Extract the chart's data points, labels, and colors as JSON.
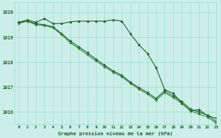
{
  "title": "Graphe pression niveau de la mer (hPa)",
  "bg_color": "#cceee8",
  "grid_color": "#99ddcc",
  "line_color1": "#1a5c28",
  "line_color2": "#1a5c28",
  "line_color3": "#2e7d3a",
  "xlim": [
    -0.5,
    23
  ],
  "ylim": [
    1015.5,
    1020.4
  ],
  "yticks": [
    1016,
    1017,
    1018,
    1019,
    1020
  ],
  "xticks": [
    0,
    1,
    2,
    3,
    4,
    5,
    6,
    7,
    8,
    9,
    10,
    11,
    12,
    13,
    14,
    15,
    16,
    17,
    18,
    19,
    20,
    21,
    22,
    23
  ],
  "series1": [
    1019.6,
    1019.7,
    1019.6,
    1019.75,
    1019.55,
    1019.55,
    1019.62,
    1019.65,
    1019.65,
    1019.65,
    1019.65,
    1019.7,
    1019.65,
    1019.15,
    1018.7,
    1018.35,
    1017.78,
    1016.9,
    1016.75,
    1016.35,
    1016.05,
    1016.1,
    1015.85,
    1015.75
  ],
  "series2": [
    1019.6,
    1019.65,
    1019.55,
    1019.5,
    1019.42,
    1019.15,
    1018.85,
    1018.62,
    1018.38,
    1018.12,
    1017.88,
    1017.65,
    1017.48,
    1017.2,
    1016.98,
    1016.78,
    1016.55,
    1016.85,
    1016.65,
    1016.42,
    1016.12,
    1016.0,
    1015.88,
    1015.62
  ],
  "series3": [
    1019.55,
    1019.65,
    1019.5,
    1019.48,
    1019.38,
    1019.1,
    1018.78,
    1018.55,
    1018.3,
    1018.05,
    1017.82,
    1017.6,
    1017.42,
    1017.15,
    1016.92,
    1016.72,
    1016.48,
    1016.78,
    1016.58,
    1016.35,
    1016.05,
    1015.92,
    1015.8,
    1015.55
  ]
}
